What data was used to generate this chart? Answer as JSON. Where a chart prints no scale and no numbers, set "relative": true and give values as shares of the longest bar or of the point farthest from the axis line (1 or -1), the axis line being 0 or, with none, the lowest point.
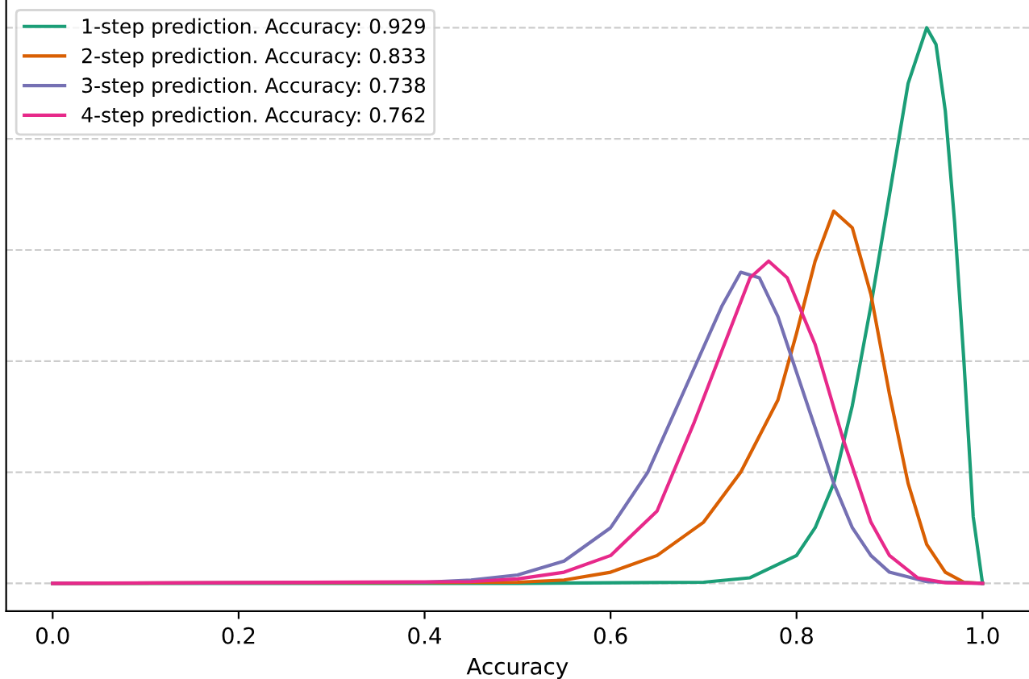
{
  "chart_data": {
    "type": "line",
    "relative": true,
    "xlabel": "Accuracy",
    "xlim": [
      -0.05,
      1.05
    ],
    "xticks": [
      {
        "value": 0,
        "label": "0.0"
      },
      0.2,
      0.4,
      0.6,
      0.8,
      {
        "value": 1,
        "label": "1.0"
      }
    ],
    "tick_labels": "x",
    "grid": "y",
    "legend": "top left",
    "line_style": "solid",
    "marker": "none",
    "series": [
      {
        "name": "1-step prediction. Accuracy: 0.929",
        "color": "#1b9e77",
        "x": [
          0,
          0.5,
          0.7,
          0.75,
          0.8,
          0.82,
          0.84,
          0.86,
          0.88,
          0.9,
          0.92,
          0.94,
          0.95,
          0.96,
          0.97,
          0.98,
          0.99,
          1.0
        ],
        "values": [
          0,
          0,
          0.002,
          0.01,
          0.05,
          0.1,
          0.18,
          0.32,
          0.5,
          0.7,
          0.9,
          1.0,
          0.97,
          0.85,
          0.65,
          0.4,
          0.12,
          0
        ]
      },
      {
        "name": "2-step prediction. Accuracy: 0.833",
        "color": "#d95f02",
        "x": [
          0,
          0.5,
          0.55,
          0.6,
          0.65,
          0.7,
          0.74,
          0.78,
          0.8,
          0.82,
          0.84,
          0.86,
          0.88,
          0.9,
          0.92,
          0.94,
          0.96,
          0.98,
          1.0
        ],
        "values": [
          0,
          0.002,
          0.006,
          0.02,
          0.05,
          0.11,
          0.2,
          0.33,
          0.45,
          0.58,
          0.67,
          0.64,
          0.52,
          0.34,
          0.18,
          0.07,
          0.02,
          0.002,
          0
        ]
      },
      {
        "name": "3-step prediction. Accuracy: 0.738",
        "color": "#7570b3",
        "x": [
          0,
          0.4,
          0.45,
          0.5,
          0.55,
          0.6,
          0.64,
          0.68,
          0.72,
          0.74,
          0.76,
          0.78,
          0.8,
          0.82,
          0.84,
          0.86,
          0.88,
          0.9,
          0.94,
          1.0
        ],
        "values": [
          0,
          0.002,
          0.006,
          0.015,
          0.04,
          0.1,
          0.2,
          0.35,
          0.5,
          0.56,
          0.55,
          0.48,
          0.38,
          0.28,
          0.18,
          0.1,
          0.05,
          0.02,
          0.003,
          0
        ]
      },
      {
        "name": "4-step prediction. Accuracy: 0.762",
        "color": "#e7298a",
        "x": [
          0,
          0.45,
          0.5,
          0.55,
          0.6,
          0.65,
          0.69,
          0.72,
          0.75,
          0.77,
          0.79,
          0.82,
          0.85,
          0.88,
          0.9,
          0.93,
          0.96,
          1.0
        ],
        "values": [
          0,
          0.003,
          0.008,
          0.02,
          0.05,
          0.13,
          0.29,
          0.42,
          0.55,
          0.58,
          0.55,
          0.43,
          0.26,
          0.11,
          0.05,
          0.01,
          0.001,
          0
        ]
      }
    ]
  }
}
